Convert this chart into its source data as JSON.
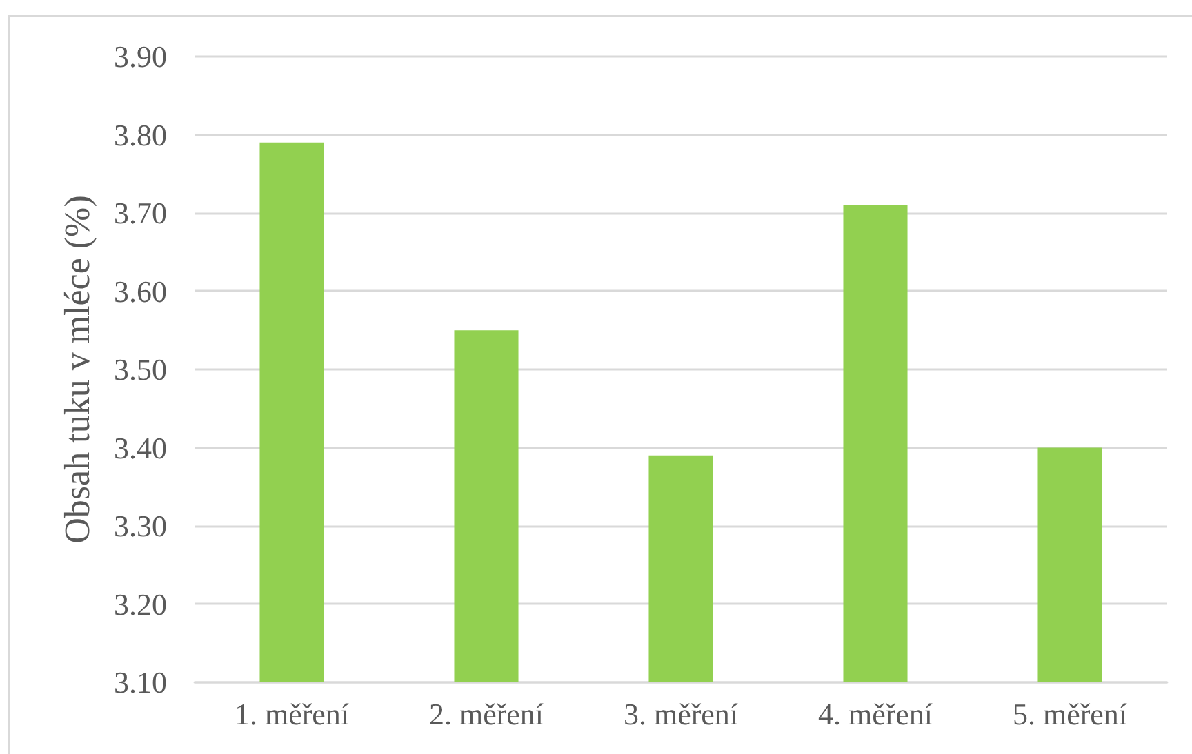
{
  "chart_data": {
    "type": "bar",
    "ylabel": "Obsah tuku v mléce (%)",
    "categories": [
      "1. měření",
      "2. měření",
      "3. měření",
      "4. měření",
      "5. měření"
    ],
    "values": [
      3.79,
      3.55,
      3.39,
      3.71,
      3.4
    ],
    "color": "#92d050",
    "ylim": [
      3.1,
      3.9
    ],
    "yticks": [
      {
        "value": 3.1,
        "label": "3.10"
      },
      {
        "value": 3.2,
        "label": "3.20"
      },
      {
        "value": 3.3,
        "label": "3.30"
      },
      {
        "value": 3.4,
        "label": "3.40"
      },
      {
        "value": 3.5,
        "label": "3.50"
      },
      {
        "value": 3.6,
        "label": "3.60"
      },
      {
        "value": 3.7,
        "label": "3.70"
      },
      {
        "value": 3.8,
        "label": "3.80"
      },
      {
        "value": 3.9,
        "label": "3.90"
      }
    ],
    "grid": "y"
  }
}
